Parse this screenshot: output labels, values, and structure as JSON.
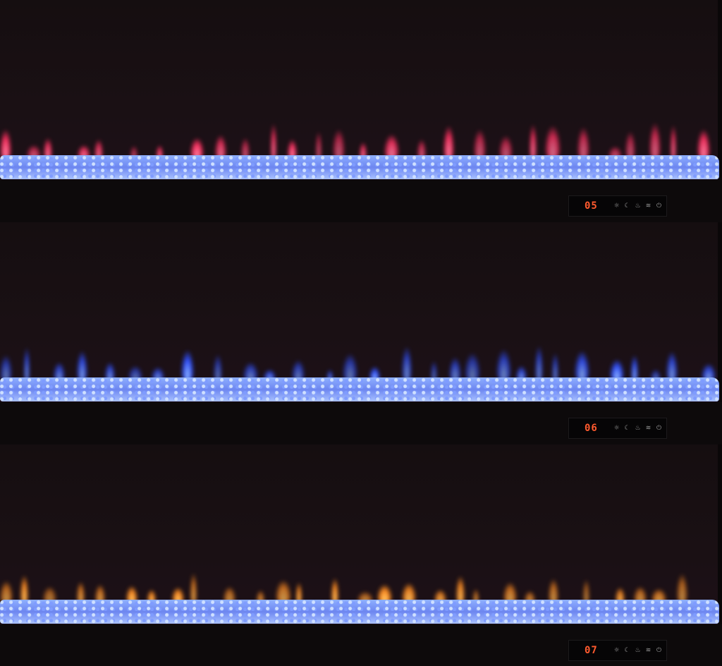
{
  "panels": [
    {
      "display": "05",
      "flame_color": "#ff3060",
      "flame_core": "#ff90b0"
    },
    {
      "display": "06",
      "flame_color": "#3050ff",
      "flame_core": "#a0c8ff"
    },
    {
      "display": "07",
      "flame_color": "#ff8a20",
      "flame_core": "#ffd070"
    }
  ],
  "control_buttons": [
    "brightness-icon",
    "timer-moon-icon",
    "flame-icon",
    "heat-icon",
    "power-icon"
  ],
  "ember_bed_color": "#8fb0ff"
}
